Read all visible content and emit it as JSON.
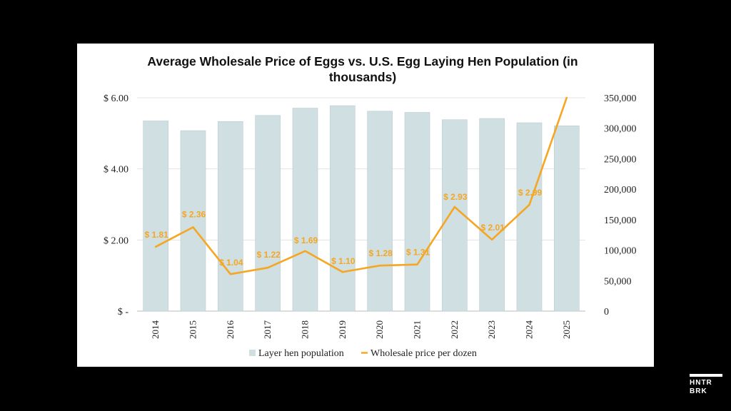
{
  "brand": {
    "line1": "HNTR",
    "line2": "BRK"
  },
  "chart_data": {
    "type": "bar",
    "title_lines": [
      "Average Wholesale Price of Eggs vs. U.S. Egg Laying Hen Population (in",
      "thousands)"
    ],
    "categories": [
      "2014",
      "2015",
      "2016",
      "2017",
      "2018",
      "2019",
      "2020",
      "2021",
      "2022",
      "2023",
      "2024",
      "2025"
    ],
    "y_left": {
      "ylim": [
        0,
        6
      ],
      "ticks": [
        0,
        2,
        4,
        6
      ],
      "tick_labels": [
        "$ -",
        "$ 2.00",
        "$ 4.00",
        "$ 6.00"
      ]
    },
    "y_right": {
      "ylim": [
        0,
        350000
      ],
      "ticks": [
        0,
        50000,
        100000,
        150000,
        200000,
        250000,
        300000,
        350000
      ],
      "tick_labels": [
        "0",
        "50,000",
        "100,000",
        "150,000",
        "200,000",
        "250,000",
        "300,000",
        "350,000"
      ]
    },
    "series": [
      {
        "name": "Layer hen population",
        "type": "bar",
        "axis": "right",
        "color": "#cfdfe2",
        "values": [
          312000,
          296000,
          311000,
          321000,
          333000,
          337000,
          328000,
          326000,
          314000,
          316000,
          309000,
          304000
        ]
      },
      {
        "name": "Wholesale price per dozen",
        "type": "line",
        "axis": "left",
        "color": "#f5a623",
        "values": [
          1.81,
          2.36,
          1.04,
          1.22,
          1.69,
          1.1,
          1.28,
          1.31,
          2.93,
          2.01,
          2.99,
          6.0
        ],
        "data_labels": [
          "$ 1.81",
          "$ 2.36",
          "$ 1.04",
          "$ 1.22",
          "$ 1.69",
          "$ 1.10",
          "$ 1.28",
          "$ 1.31",
          "$ 2.93",
          "$ 2.01",
          "$ 2.99",
          ""
        ]
      }
    ],
    "legend": {
      "position": "bottom"
    },
    "grid": true
  }
}
